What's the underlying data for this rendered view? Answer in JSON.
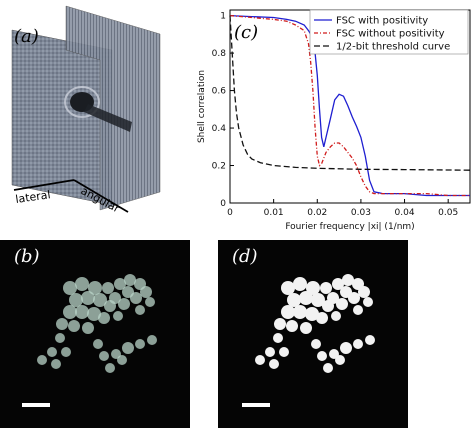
{
  "panels": {
    "a": {
      "label": "(a)",
      "lateral": "lateral",
      "angular": "angular"
    },
    "b": {
      "label": "(b)"
    },
    "c": {
      "label": "(c)"
    },
    "d": {
      "label": "(d)"
    }
  },
  "chart_data": {
    "type": "line",
    "xlabel": "Fourier frequency |xi| (1/nm)",
    "ylabel": "Shell correlation",
    "xlim": [
      0,
      0.055
    ],
    "ylim": [
      0,
      1.03
    ],
    "xticks": [
      "0",
      "0.01",
      "0.02",
      "0.03",
      "0.04",
      "0.05"
    ],
    "yticks": [
      "0",
      "0.2",
      "0.4",
      "0.6",
      "0.8",
      "1"
    ],
    "legend_position": "top-right",
    "series": [
      {
        "name": "FSC with positivity",
        "color": "#1f1fd1",
        "style": "solid",
        "x": [
          0,
          0.005,
          0.01,
          0.013,
          0.015,
          0.017,
          0.018,
          0.019,
          0.0195,
          0.02,
          0.0205,
          0.021,
          0.0215,
          0.022,
          0.023,
          0.024,
          0.025,
          0.026,
          0.027,
          0.028,
          0.029,
          0.03,
          0.031,
          0.032,
          0.033,
          0.035,
          0.04,
          0.045,
          0.05,
          0.055
        ],
        "y": [
          1.0,
          0.995,
          0.99,
          0.98,
          0.97,
          0.95,
          0.92,
          0.88,
          0.8,
          0.68,
          0.5,
          0.35,
          0.3,
          0.35,
          0.45,
          0.55,
          0.58,
          0.57,
          0.52,
          0.46,
          0.41,
          0.35,
          0.25,
          0.12,
          0.06,
          0.05,
          0.05,
          0.04,
          0.04,
          0.04
        ]
      },
      {
        "name": "FSC without positivity",
        "color": "#d01c1c",
        "style": "dashdot",
        "x": [
          0,
          0.005,
          0.01,
          0.013,
          0.015,
          0.017,
          0.018,
          0.0185,
          0.019,
          0.0195,
          0.02,
          0.0205,
          0.021,
          0.0215,
          0.022,
          0.023,
          0.024,
          0.025,
          0.026,
          0.027,
          0.028,
          0.029,
          0.03,
          0.031,
          0.032,
          0.033,
          0.035,
          0.04,
          0.045,
          0.05,
          0.055
        ],
        "y": [
          1.0,
          0.99,
          0.98,
          0.97,
          0.95,
          0.92,
          0.85,
          0.75,
          0.6,
          0.4,
          0.25,
          0.2,
          0.21,
          0.24,
          0.27,
          0.3,
          0.32,
          0.32,
          0.3,
          0.27,
          0.24,
          0.2,
          0.14,
          0.09,
          0.06,
          0.05,
          0.05,
          0.05,
          0.05,
          0.04,
          0.04
        ]
      },
      {
        "name": "1/2-bit threshold curve",
        "color": "#111111",
        "style": "dashed",
        "x": [
          0,
          0.0005,
          0.001,
          0.0015,
          0.002,
          0.003,
          0.004,
          0.005,
          0.007,
          0.01,
          0.015,
          0.02,
          0.03,
          0.04,
          0.05,
          0.055
        ],
        "y": [
          1.0,
          0.8,
          0.6,
          0.48,
          0.4,
          0.31,
          0.26,
          0.235,
          0.215,
          0.2,
          0.19,
          0.185,
          0.18,
          0.178,
          0.176,
          0.175
        ]
      }
    ]
  }
}
